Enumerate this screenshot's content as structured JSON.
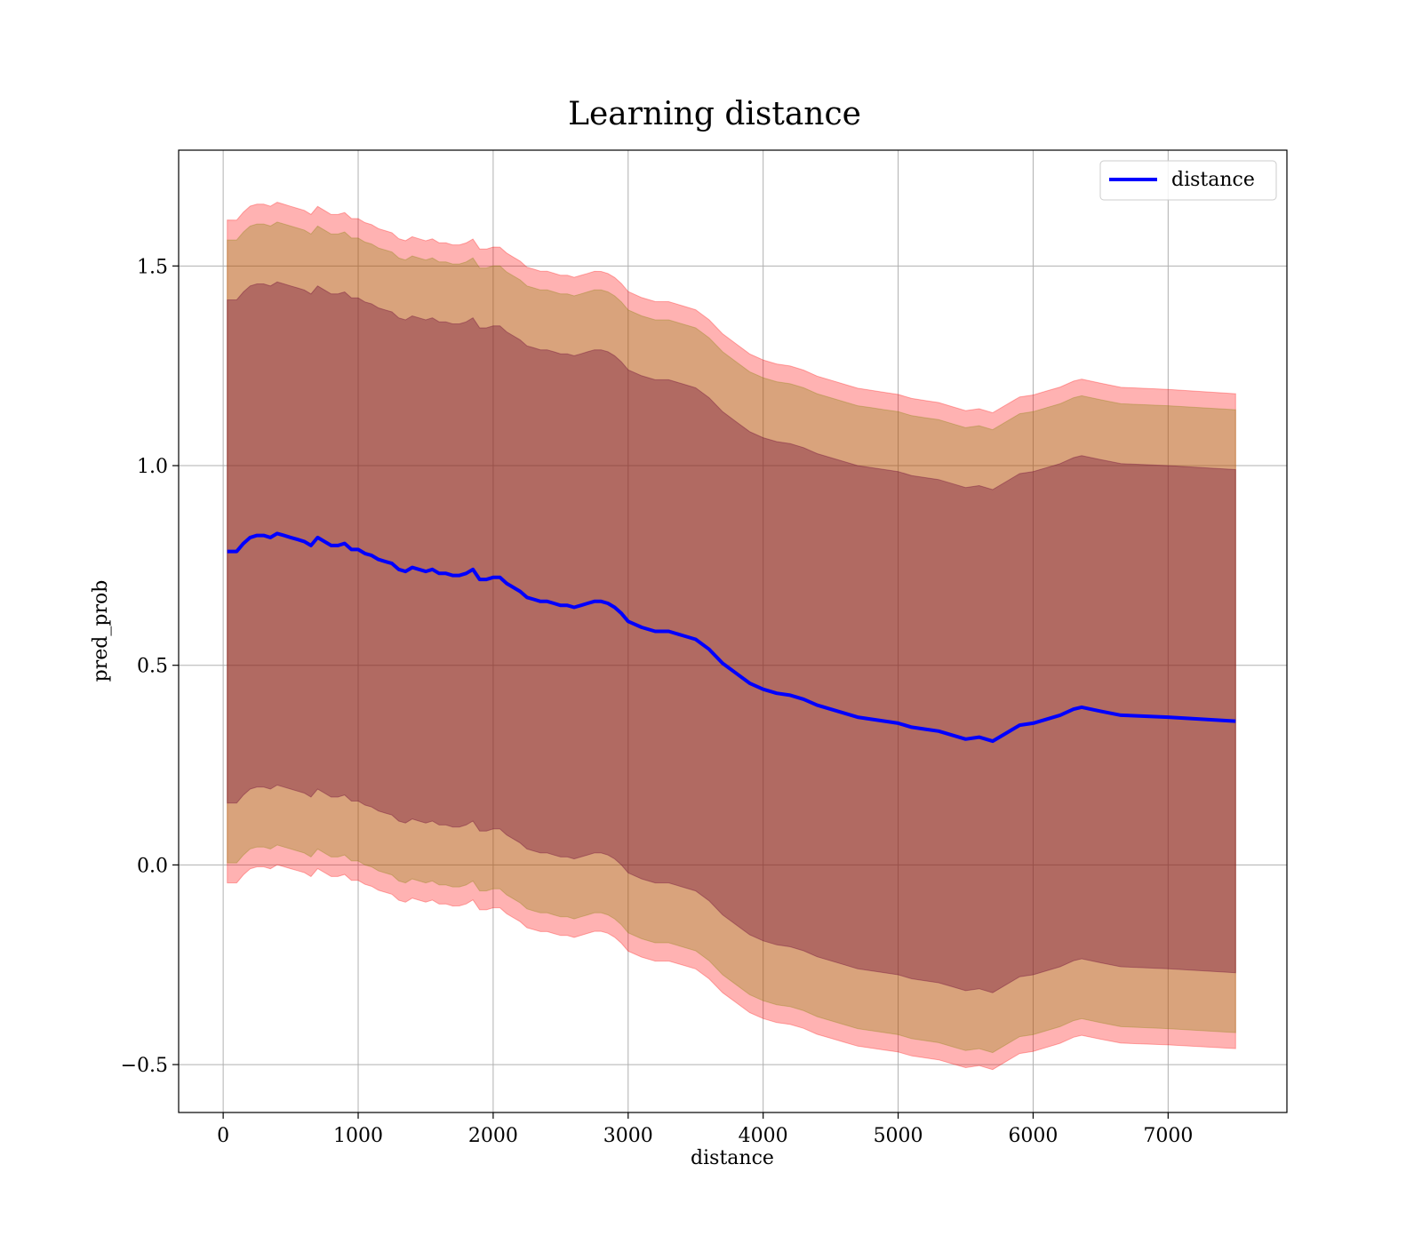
{
  "chart_data": {
    "type": "line",
    "title": "Learning distance",
    "xlabel": "distance",
    "ylabel": "pred_prob",
    "xlim": [
      -330,
      7880
    ],
    "ylim": [
      -0.62,
      1.79
    ],
    "xticks": [
      0,
      1000,
      2000,
      3000,
      4000,
      5000,
      6000,
      7000
    ],
    "xtick_labels": [
      "0",
      "1000",
      "2000",
      "3000",
      "4000",
      "5000",
      "6000",
      "7000"
    ],
    "yticks": [
      -0.5,
      0.0,
      0.5,
      1.0,
      1.5
    ],
    "ytick_labels": [
      "−0.5",
      "0.0",
      "0.5",
      "1.0",
      "1.5"
    ],
    "grid": true,
    "legend": {
      "position": "top-right",
      "entries": [
        "distance"
      ]
    },
    "series": [
      {
        "name": "distance",
        "color": "#0000ff",
        "x": [
          30,
          100,
          150,
          200,
          250,
          300,
          350,
          400,
          450,
          500,
          550,
          600,
          650,
          700,
          750,
          800,
          850,
          900,
          950,
          1000,
          1050,
          1100,
          1150,
          1200,
          1250,
          1300,
          1350,
          1400,
          1450,
          1500,
          1550,
          1600,
          1650,
          1700,
          1750,
          1800,
          1850,
          1900,
          1950,
          2000,
          2050,
          2100,
          2150,
          2200,
          2250,
          2300,
          2350,
          2400,
          2450,
          2500,
          2550,
          2600,
          2650,
          2700,
          2750,
          2800,
          2850,
          2900,
          2950,
          3000,
          3100,
          3200,
          3300,
          3400,
          3500,
          3600,
          3700,
          3800,
          3900,
          4000,
          4100,
          4200,
          4300,
          4400,
          4500,
          4600,
          4700,
          4800,
          4900,
          5000,
          5100,
          5200,
          5300,
          5400,
          5500,
          5600,
          5700,
          5800,
          5900,
          6000,
          6100,
          6200,
          6300,
          6360,
          6500,
          6650,
          7000,
          7500
        ],
        "values": [
          0.785,
          0.785,
          0.805,
          0.82,
          0.825,
          0.825,
          0.82,
          0.83,
          0.825,
          0.82,
          0.815,
          0.81,
          0.8,
          0.82,
          0.81,
          0.8,
          0.8,
          0.805,
          0.79,
          0.79,
          0.78,
          0.775,
          0.765,
          0.76,
          0.755,
          0.74,
          0.735,
          0.745,
          0.74,
          0.735,
          0.74,
          0.73,
          0.73,
          0.725,
          0.725,
          0.73,
          0.74,
          0.715,
          0.715,
          0.72,
          0.72,
          0.705,
          0.695,
          0.685,
          0.67,
          0.665,
          0.66,
          0.66,
          0.655,
          0.65,
          0.65,
          0.645,
          0.65,
          0.655,
          0.66,
          0.66,
          0.655,
          0.645,
          0.63,
          0.61,
          0.595,
          0.585,
          0.585,
          0.575,
          0.565,
          0.54,
          0.505,
          0.48,
          0.455,
          0.44,
          0.43,
          0.425,
          0.415,
          0.4,
          0.39,
          0.38,
          0.37,
          0.365,
          0.36,
          0.355,
          0.345,
          0.34,
          0.335,
          0.325,
          0.315,
          0.32,
          0.31,
          0.33,
          0.35,
          0.355,
          0.365,
          0.375,
          0.39,
          0.395,
          0.385,
          0.375,
          0.37,
          0.36
        ]
      }
    ],
    "bands": [
      {
        "label": "outer band (±2 std)",
        "color": "#ff0000",
        "opacity": 0.3,
        "halfwidth_start": 0.83,
        "halfwidth_end": 0.82
      },
      {
        "label": "middle band (±1.5 std)",
        "color": "#808000",
        "opacity": 0.3,
        "halfwidth_start": 0.78,
        "halfwidth_end": 0.78
      },
      {
        "label": "inner band (±1 std)",
        "color": "#660033",
        "opacity": 0.35,
        "halfwidth_start": 0.63,
        "halfwidth_end": 0.63
      }
    ]
  }
}
